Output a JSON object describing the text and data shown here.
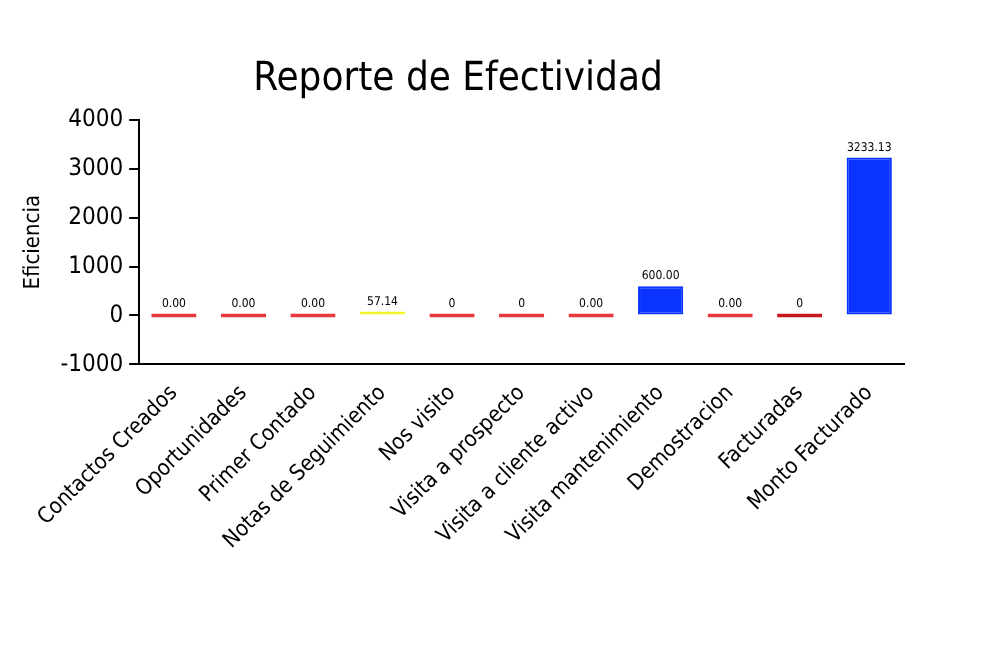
{
  "chart_data": {
    "type": "bar",
    "title": "Reporte de Efectividad",
    "ylabel": "Eficiencia",
    "categories": [
      "Contactos Creados",
      "Oportunidades",
      "Primer Contado",
      "Notas de Seguimiento",
      "Nos visito",
      "Visita a prospecto",
      "Visita a cliente activo",
      "Visita mantenimiento",
      "Demostracion",
      "Facturadas",
      "Monto Facturado"
    ],
    "values": [
      0,
      0,
      0,
      57.14,
      0,
      0,
      0,
      600,
      0,
      0,
      3233.13
    ],
    "value_labels": [
      "0.00",
      "0.00",
      "0.00",
      "57.14",
      "0",
      "0",
      "0.00",
      "600.00",
      "0.00",
      "0",
      "3233.13"
    ],
    "colors": [
      "#e8383d",
      "#e8383d",
      "#e8383d",
      "#f5f52a",
      "#e8383d",
      "#e8383d",
      "#e8383d",
      "#0a33ff",
      "#e8383d",
      "#c8141c",
      "#0a33ff"
    ],
    "ylim": [
      -1000,
      4000
    ],
    "yticks": [
      -1000,
      0,
      1000,
      2000,
      3000,
      4000
    ],
    "grid": false,
    "legend": false
  }
}
